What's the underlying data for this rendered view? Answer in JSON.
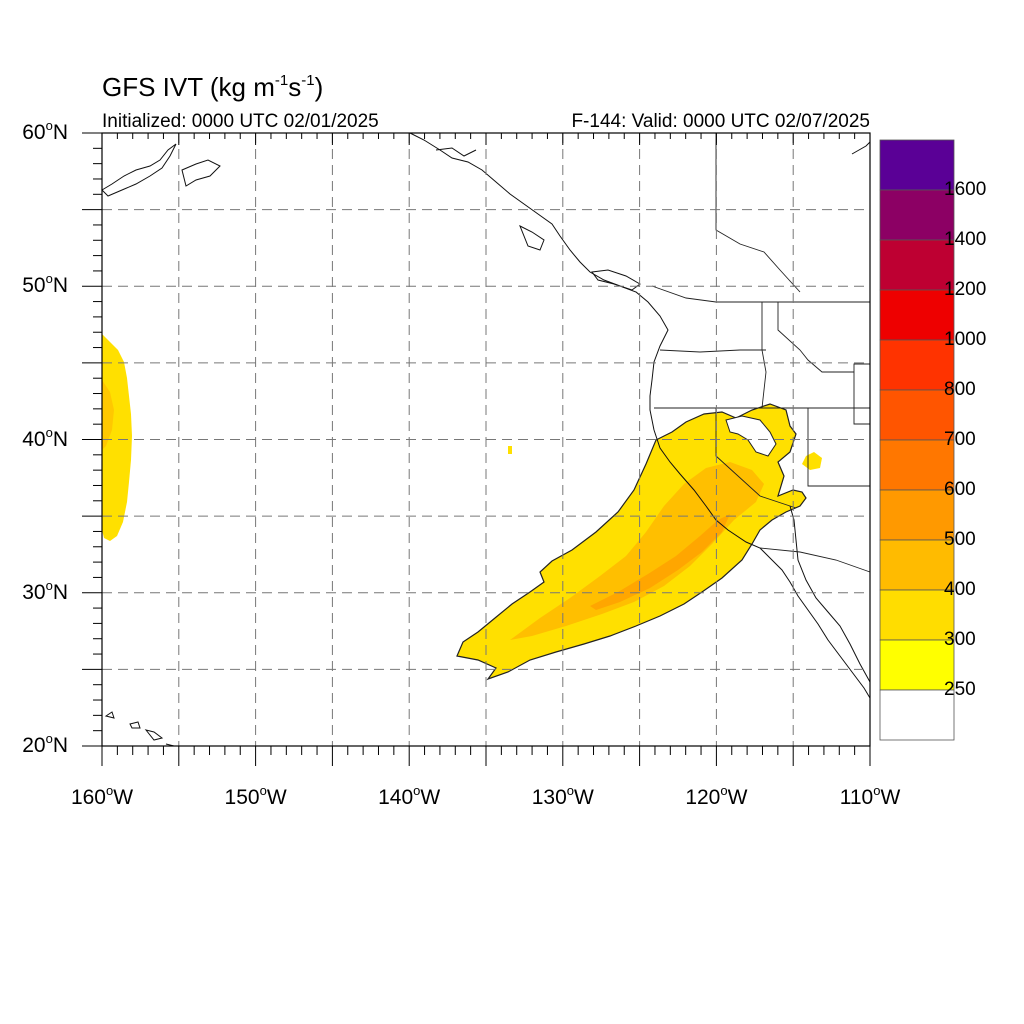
{
  "title": {
    "prefix": "GFS IVT (kg m",
    "exp1": "-1",
    "mid": "s",
    "exp2": "-1",
    "suffix": ")"
  },
  "initialized": "Initialized: 0000 UTC 02/01/2025",
  "valid": "F-144: Valid: 0000 UTC 02/07/2025",
  "map": {
    "lon_range": [
      -160,
      -110
    ],
    "lat_range": [
      20,
      60
    ],
    "gridlines": "dashed",
    "lat_labels": [
      {
        "num": "60",
        "hemi": "N"
      },
      {
        "num": "50",
        "hemi": "N"
      },
      {
        "num": "40",
        "hemi": "N"
      },
      {
        "num": "30",
        "hemi": "N"
      },
      {
        "num": "20",
        "hemi": "N"
      }
    ],
    "lon_labels": [
      {
        "num": "160",
        "hemi": "W"
      },
      {
        "num": "150",
        "hemi": "W"
      },
      {
        "num": "140",
        "hemi": "W"
      },
      {
        "num": "130",
        "hemi": "W"
      },
      {
        "num": "120",
        "hemi": "W"
      },
      {
        "num": "110",
        "hemi": "W"
      }
    ]
  },
  "colorbar": {
    "labels": [
      "1600",
      "1400",
      "1200",
      "1000",
      "800",
      "700",
      "600",
      "500",
      "400",
      "300",
      "250"
    ],
    "colors": [
      "#5a0096",
      "#8c0064",
      "#be0032",
      "#ee0000",
      "#ff3300",
      "#ff5500",
      "#ff7700",
      "#ff9900",
      "#ffbb00",
      "#ffdd00",
      "#ffff00",
      "#ffffff"
    ]
  }
}
